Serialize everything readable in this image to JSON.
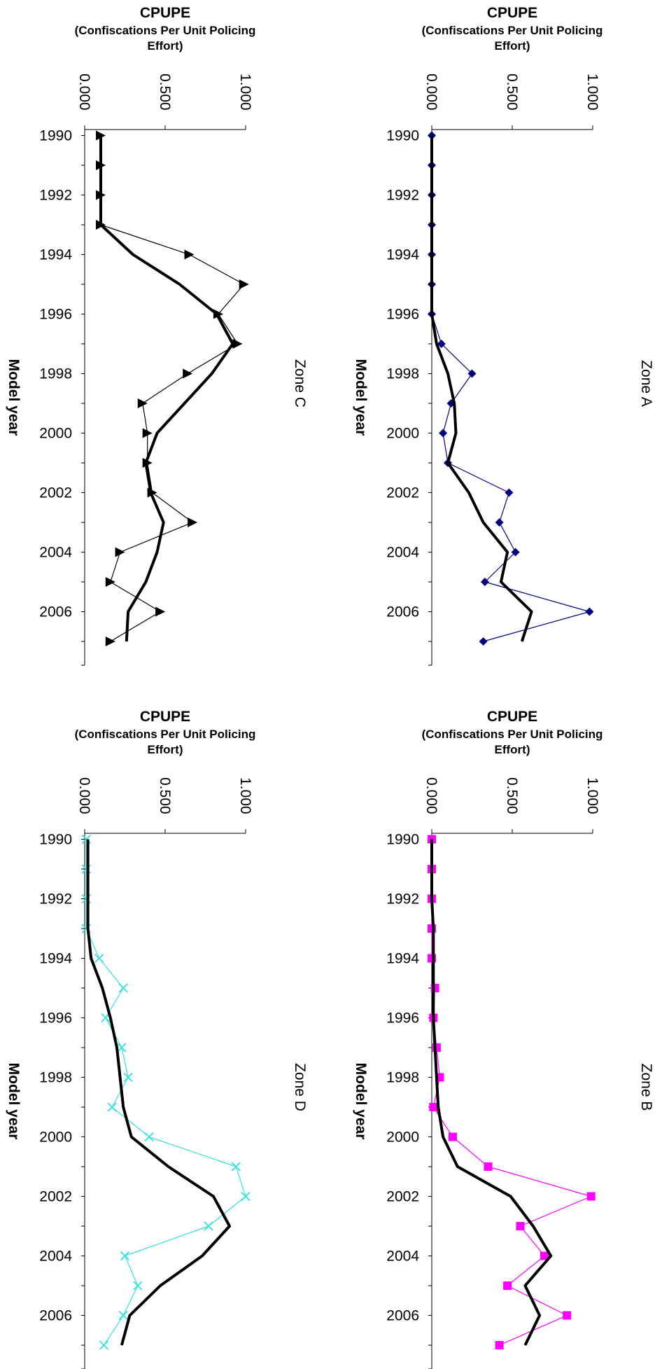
{
  "chart_data": [
    {
      "type": "line",
      "title": "Zone A",
      "xlabel": "CPUPE",
      "xlabel_sub": "(Confiscations Per Unit Policing Effort)",
      "ylabel": "Model year",
      "xlim": [
        0,
        1
      ],
      "xticks": [
        "0.000",
        "0.500",
        "1.000"
      ],
      "ylim": [
        1989.8,
        2007.8
      ],
      "yticks": [
        "1990",
        "1992",
        "1994",
        "1996",
        "1998",
        "2000",
        "2002",
        "2004",
        "2006"
      ],
      "years": [
        1990,
        1991,
        1992,
        1993,
        1994,
        1995,
        1996,
        1997,
        1998,
        1999,
        2000,
        2001,
        2002,
        2003,
        2004,
        2005,
        2006,
        2007
      ],
      "series": [
        {
          "marker": "diamond",
          "color": "#000080",
          "width": 1.2,
          "values": [
            0,
            0,
            0,
            0,
            0,
            0,
            0,
            0.06,
            0.25,
            0.12,
            0.07,
            0.1,
            0.48,
            0.42,
            0.52,
            0.33,
            0.98,
            0.32
          ]
        },
        {
          "marker": "none",
          "color": "#000000",
          "width": 4,
          "values": [
            0,
            0,
            0,
            0,
            0,
            0,
            0,
            0.03,
            0.1,
            0.14,
            0.15,
            0.1,
            0.23,
            0.32,
            0.47,
            0.43,
            0.62,
            0.56
          ]
        }
      ]
    },
    {
      "type": "line",
      "title": "Zone B",
      "xlabel": "CPUPE",
      "xlabel_sub": "(Confiscations Per Unit Policing Effort)",
      "ylabel": "Model year",
      "xlim": [
        0,
        1
      ],
      "xticks": [
        "0.000",
        "0.500",
        "1.000"
      ],
      "ylim": [
        1989.8,
        2007.8
      ],
      "yticks": [
        "1990",
        "1992",
        "1994",
        "1996",
        "1998",
        "2000",
        "2002",
        "2004",
        "2006"
      ],
      "years": [
        1990,
        1991,
        1992,
        1993,
        1994,
        1995,
        1996,
        1997,
        1998,
        1999,
        2000,
        2001,
        2002,
        2003,
        2004,
        2005,
        2006,
        2007
      ],
      "series": [
        {
          "marker": "square",
          "color": "#FF00FF",
          "width": 1.2,
          "values": [
            0,
            0,
            0,
            0,
            0,
            0.02,
            0.01,
            0.03,
            0.05,
            0.01,
            0.13,
            0.35,
            0.99,
            0.55,
            0.7,
            0.47,
            0.84,
            0.42
          ]
        },
        {
          "marker": "none",
          "color": "#000000",
          "width": 4,
          "values": [
            0,
            0,
            0,
            0.01,
            0.01,
            0.01,
            0.01,
            0.02,
            0.03,
            0.04,
            0.07,
            0.16,
            0.49,
            0.63,
            0.74,
            0.58,
            0.67,
            0.58
          ]
        }
      ]
    },
    {
      "type": "line",
      "title": "Zone C",
      "xlabel": "CPUPE",
      "xlabel_sub": "(Confiscations Per Unit Policing Effort)",
      "ylabel": "Model year",
      "xlim": [
        0,
        1
      ],
      "xticks": [
        "0.000",
        "0.500",
        "1.000"
      ],
      "ylim": [
        1989.8,
        2007.8
      ],
      "yticks": [
        "1990",
        "1992",
        "1994",
        "1996",
        "1998",
        "2000",
        "2002",
        "2004",
        "2006"
      ],
      "years": [
        1990,
        1991,
        1992,
        1993,
        1994,
        1995,
        1996,
        1997,
        1998,
        1999,
        2000,
        2001,
        2002,
        2003,
        2004,
        2005,
        2006,
        2007
      ],
      "series": [
        {
          "marker": "triangle",
          "color": "#000000",
          "width": 1.2,
          "values": [
            0.1,
            0.1,
            0.1,
            0.1,
            0.65,
            0.99,
            0.83,
            0.95,
            0.64,
            0.36,
            0.39,
            0.39,
            0.42,
            0.67,
            0.22,
            0.16,
            0.47,
            0.16
          ]
        },
        {
          "marker": "none",
          "color": "#000000",
          "width": 4,
          "values": [
            0.1,
            0.1,
            0.1,
            0.1,
            0.3,
            0.59,
            0.82,
            0.92,
            0.79,
            0.62,
            0.45,
            0.38,
            0.41,
            0.49,
            0.45,
            0.38,
            0.27,
            0.26
          ]
        }
      ]
    },
    {
      "type": "line",
      "title": "Zone D",
      "xlabel": "CPUPE",
      "xlabel_sub": "(Confiscations Per Unit Policing Effort)",
      "ylabel": "Model year",
      "xlim": [
        0,
        1
      ],
      "xticks": [
        "0.000",
        "0.500",
        "1.000"
      ],
      "ylim": [
        1989.8,
        2007.8
      ],
      "yticks": [
        "1990",
        "1992",
        "1994",
        "1996",
        "1998",
        "2000",
        "2002",
        "2004",
        "2006"
      ],
      "years": [
        1990,
        1991,
        1992,
        1993,
        1994,
        1995,
        1996,
        1997,
        1998,
        1999,
        2000,
        2001,
        2002,
        2003,
        2004,
        2005,
        2006,
        2007
      ],
      "series": [
        {
          "marker": "x",
          "color": "#33E0E0",
          "width": 1.2,
          "values": [
            0.01,
            0.01,
            0.01,
            0.01,
            0.09,
            0.24,
            0.13,
            0.23,
            0.27,
            0.17,
            0.4,
            0.94,
            1.0,
            0.77,
            0.25,
            0.33,
            0.24,
            0.12
          ]
        },
        {
          "marker": "none",
          "color": "#000000",
          "width": 4,
          "values": [
            0.02,
            0.02,
            0.02,
            0.02,
            0.04,
            0.11,
            0.16,
            0.2,
            0.22,
            0.24,
            0.29,
            0.52,
            0.8,
            0.9,
            0.73,
            0.47,
            0.28,
            0.23
          ]
        }
      ]
    }
  ]
}
